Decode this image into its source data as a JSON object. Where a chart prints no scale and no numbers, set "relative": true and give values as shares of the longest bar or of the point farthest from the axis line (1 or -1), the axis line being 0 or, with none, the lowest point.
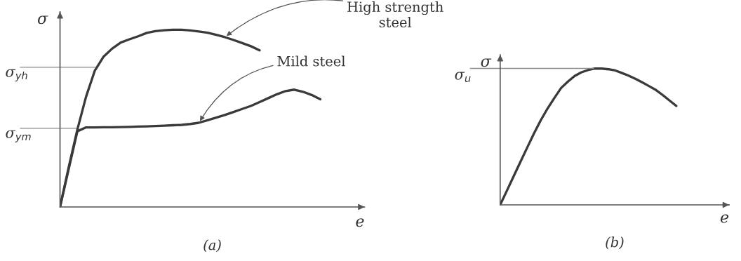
{
  "chart_data": [
    {
      "type": "line",
      "title": "(a)",
      "xlabel": "e",
      "ylabel": "σ",
      "relative": true,
      "tick_labels": false,
      "categories": [
        null,
        null,
        null,
        null,
        null,
        null,
        null,
        null,
        null,
        null,
        null,
        null,
        null,
        null,
        null,
        null,
        null,
        null,
        null,
        null,
        null,
        null,
        null,
        null,
        null,
        null,
        null,
        null,
        null,
        null,
        null
      ],
      "series": [
        {
          "color": "#3a3a3a",
          "values": [
            0,
            0.224,
            0.437,
            0.622,
            0.768,
            0.847,
            0.893,
            0.928,
            0.946,
            0.963,
            0.982,
            0.992,
            0.997,
            1.0,
            1.0,
            0.996,
            0.99,
            0.983,
            0.971,
            0.958,
            0.942,
            0.925,
            0.907,
            0.884,
            null,
            null,
            null,
            null,
            null,
            null,
            null
          ]
        },
        {
          "color": "#3a3a3a",
          "values": [
            0,
            0.214,
            0.427,
            0.449,
            0.449,
            0.45,
            0.45,
            0.451,
            0.452,
            0.454,
            0.455,
            0.457,
            0.459,
            0.461,
            0.463,
            0.468,
            0.475,
            0.489,
            0.504,
            0.519,
            0.536,
            0.553,
            0.57,
            0.592,
            0.614,
            0.636,
            0.654,
            0.662,
            0.65,
            0.632,
            0.608
          ]
        }
      ],
      "ref_lines": [
        {
          "axis": "y",
          "value": 0.788,
          "label": "σ$_{yh}$",
          "color": "#8a8a8a"
        },
        {
          "axis": "y",
          "value": 0.444,
          "label": "σ$_{ym}$",
          "color": "#8a8a8a"
        }
      ],
      "annotations": [
        "High strength\nsteel",
        "Mild steel"
      ]
    },
    {
      "type": "line",
      "title": "(b)",
      "xlabel": "e",
      "ylabel": "σ",
      "relative": true,
      "tick_labels": false,
      "categories": [
        null,
        null,
        null,
        null,
        null,
        null,
        null,
        null,
        null,
        null,
        null,
        null,
        null,
        null,
        null,
        null,
        null,
        null,
        null,
        null,
        null,
        null,
        null,
        null,
        null,
        null,
        null
      ],
      "series": [
        {
          "color": "#3a3a3a",
          "values": [
            0,
            0.105,
            0.211,
            0.316,
            0.421,
            0.525,
            0.621,
            0.707,
            0.784,
            0.857,
            0.904,
            0.945,
            0.972,
            0.989,
            1.0,
            0.999,
            0.994,
            0.985,
            0.966,
            0.946,
            0.923,
            0.897,
            0.87,
            0.842,
            0.805,
            0.765,
            0.725
          ]
        }
      ],
      "ref_lines": [
        {
          "axis": "y",
          "value": 1.0,
          "label": "σ$_{u}$",
          "color": "#8a8a8a"
        }
      ]
    }
  ]
}
